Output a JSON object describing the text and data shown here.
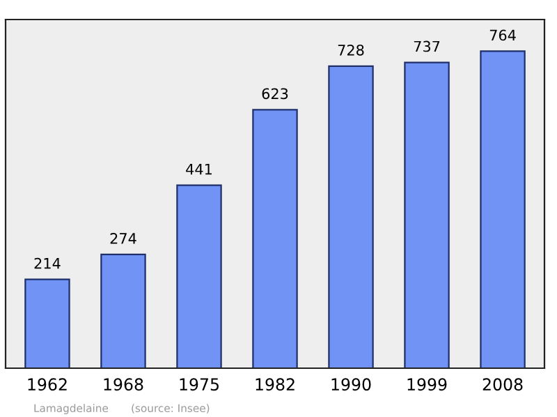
{
  "chart_data": {
    "type": "bar",
    "categories": [
      "1962",
      "1968",
      "1975",
      "1982",
      "1990",
      "1999",
      "2008"
    ],
    "values": [
      214,
      274,
      441,
      623,
      728,
      737,
      764
    ],
    "color": "#7093f5",
    "data_labels": true,
    "grid": false,
    "annotations": [
      "Lamagdelaine",
      "(source: Insee)"
    ]
  }
}
